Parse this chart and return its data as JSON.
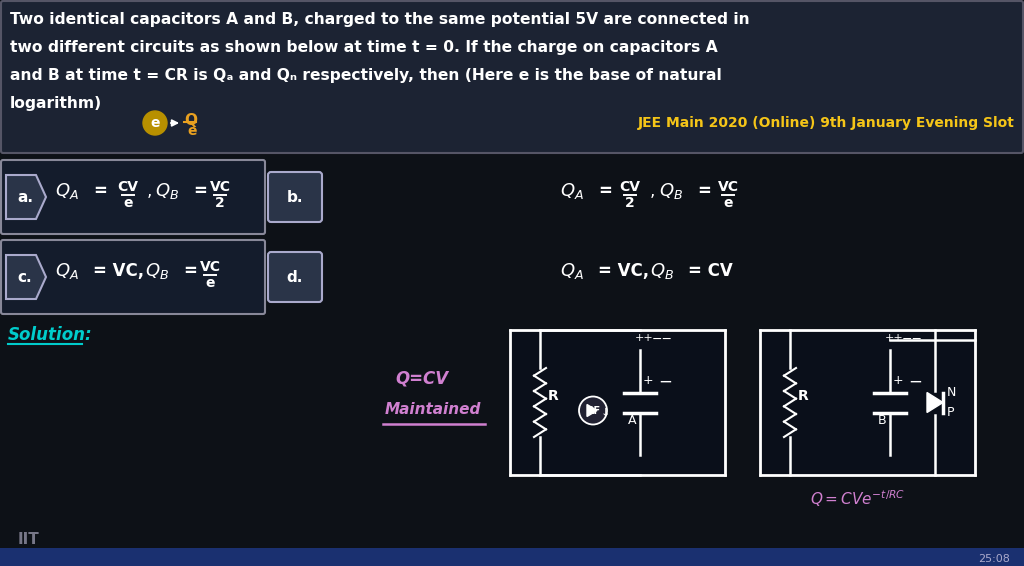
{
  "bg_color": "#0d1117",
  "title_bg": "#1c2333",
  "title_border": "#555566",
  "text_white": "#ffffff",
  "text_yellow": "#f5c518",
  "text_pink": "#d080d0",
  "text_cyan": "#00d0d0",
  "text_orange": "#e8a020",
  "opt_bg": "#141c2c",
  "opt_border": "#888899",
  "penta_bg": "#2a3448",
  "penta_border": "#aaaacc",
  "jee_color": "#f5c518",
  "circle_color": "#b89000",
  "sol_color": "#00cccc",
  "title_lines": [
    "Two identical capacitors A and B, charged to the same potential 5V are connected in",
    "two different circuits as shown below at time t = 0. If the charge on capacitors A",
    "and B at time t = CR is Qₐ and Qₙ respectively, then (Here e is the base of natural",
    "logarithm)"
  ],
  "jee_text": "JEE Main 2020 (Online) 9th January Evening Slot"
}
